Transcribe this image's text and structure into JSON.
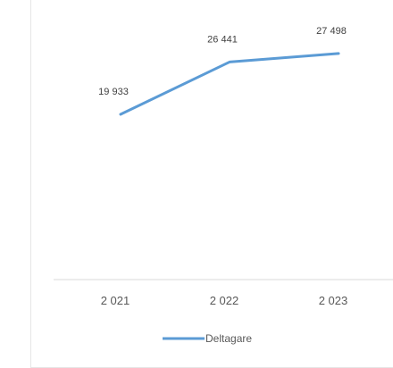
{
  "chart_data": {
    "type": "line",
    "categories": [
      "2 021",
      "2 022",
      "2 023"
    ],
    "series": [
      {
        "name": "Deltagare",
        "values": [
          19933,
          26441,
          27498
        ],
        "labels": [
          "19 933",
          "26 441",
          "27 498"
        ],
        "color": "#5b9bd5"
      }
    ],
    "xlabel": "",
    "ylabel": "",
    "legend": "bottom",
    "grid": false
  }
}
